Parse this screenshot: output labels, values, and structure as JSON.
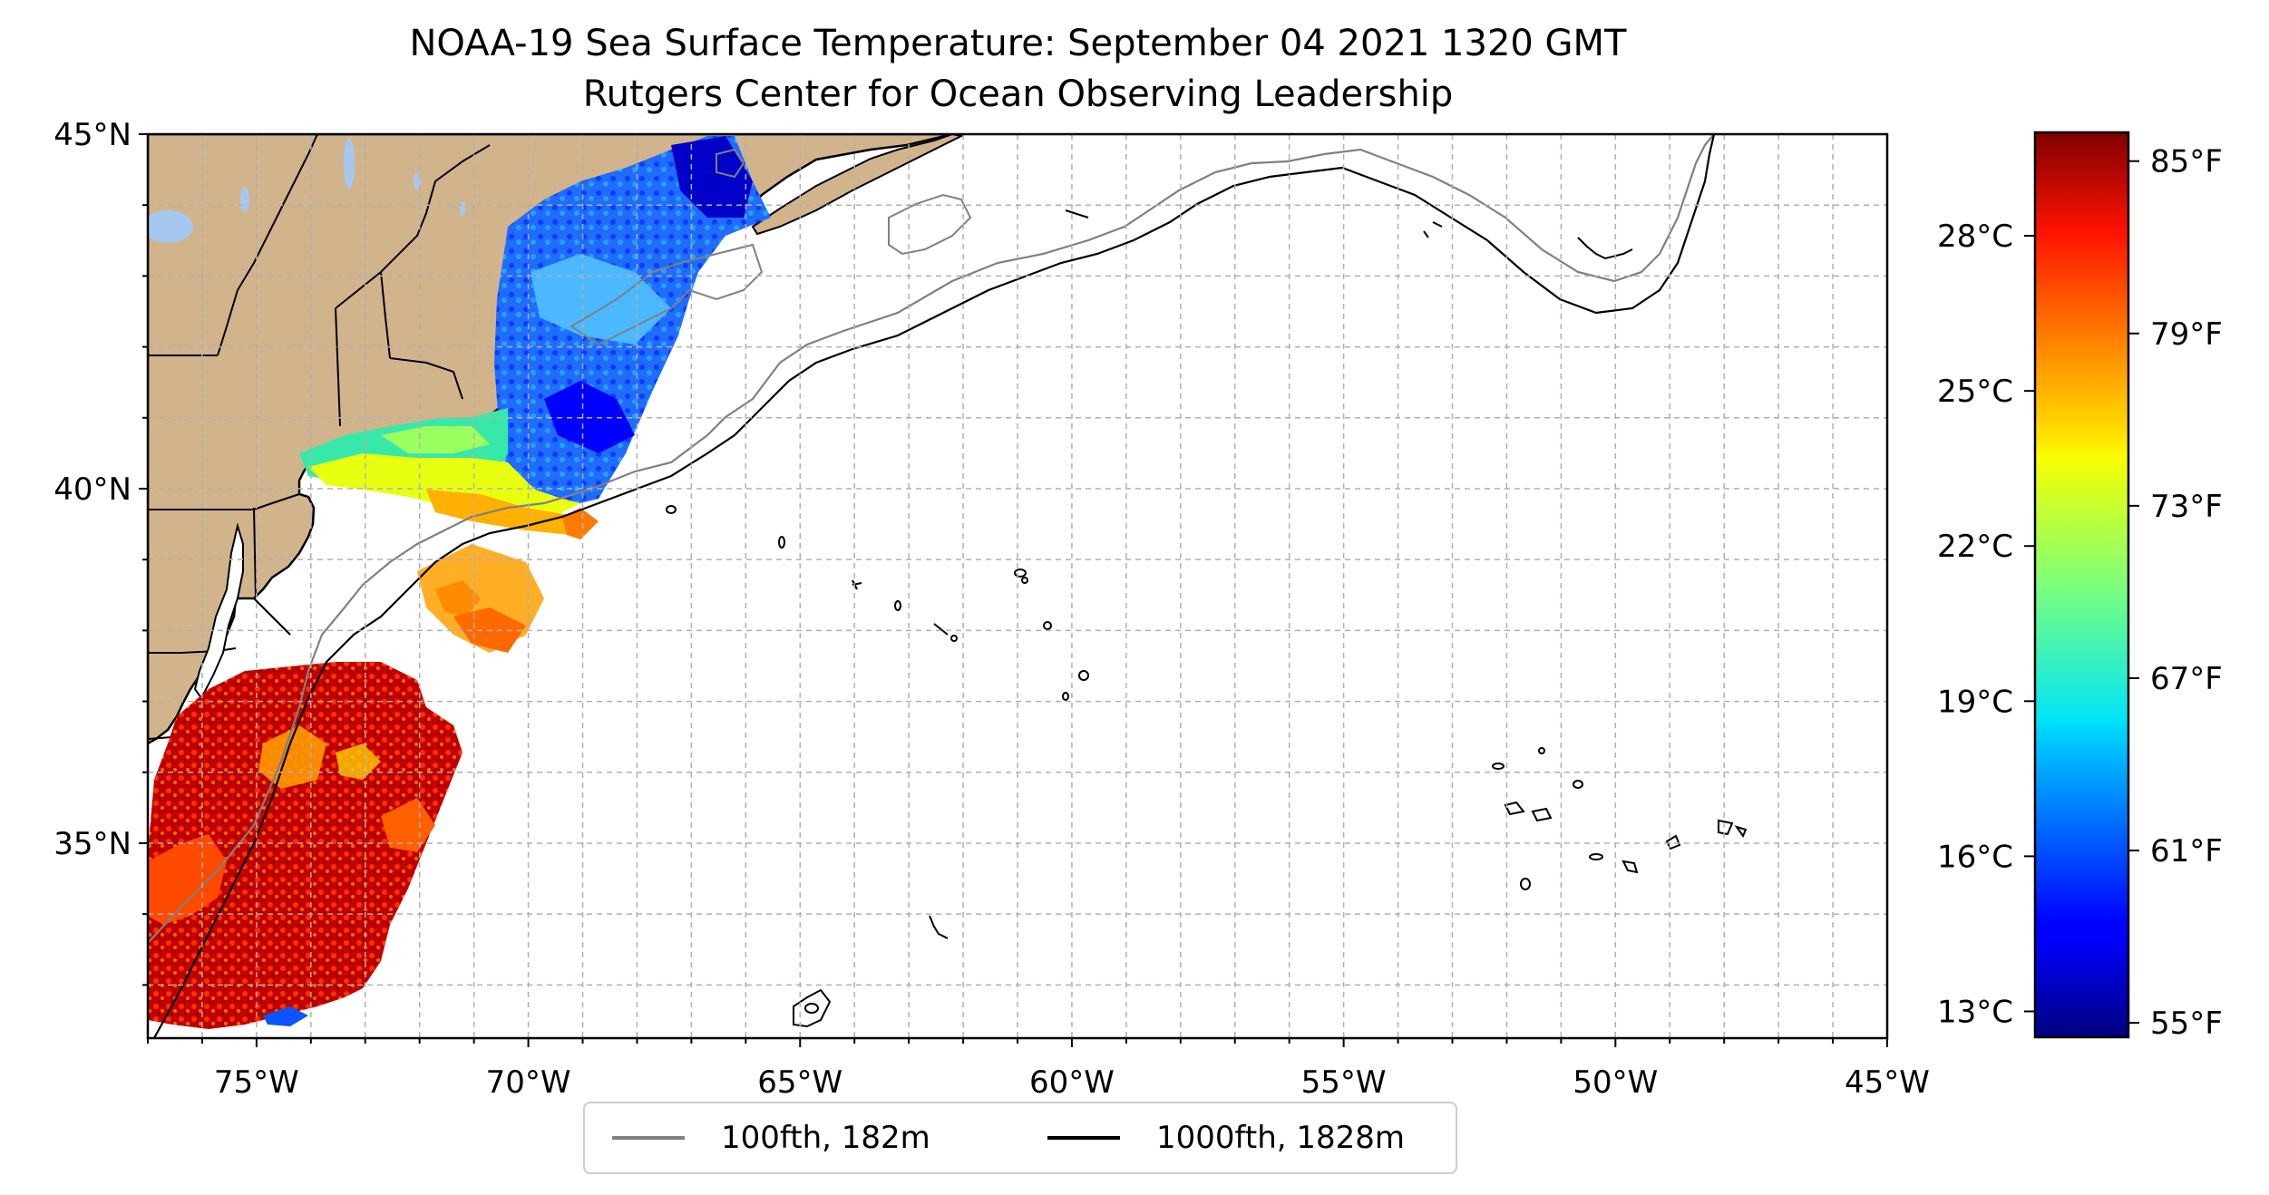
{
  "title": "NOAA-19 Sea Surface Temperature: September 04 2021 1320 GMT",
  "subtitle": "Rutgers Center for Ocean Observing Leadership",
  "map": {
    "lon_ticks": [
      {
        "label": "75°W",
        "lon": -75
      },
      {
        "label": "70°W",
        "lon": -70
      },
      {
        "label": "65°W",
        "lon": -65
      },
      {
        "label": "60°W",
        "lon": -60
      },
      {
        "label": "55°W",
        "lon": -55
      },
      {
        "label": "50°W",
        "lon": -50
      },
      {
        "label": "45°W",
        "lon": -45
      }
    ],
    "lat_ticks": [
      {
        "label": "45°N",
        "lat": 45
      },
      {
        "label": "40°N",
        "lat": 40
      },
      {
        "label": "35°N",
        "lat": 35
      }
    ],
    "extent": {
      "lon_min": -77,
      "lon_max": -45,
      "lat_min": 32.25,
      "lat_max": 45
    },
    "land_color": "#d2b48c",
    "water_color": "#ffffff",
    "grid": "dashed, every 1 degree"
  },
  "colorbar": {
    "colormap": "jet",
    "range_f": [
      54.5,
      86
    ],
    "celsius_ticks": [
      "28°C",
      "25°C",
      "22°C",
      "19°C",
      "16°C",
      "13°C"
    ],
    "fahrenheit_ticks": [
      "85°F",
      "79°F",
      "73°F",
      "67°F",
      "61°F",
      "55°F"
    ]
  },
  "legend": {
    "items": [
      {
        "label": "100fth, 182m",
        "color": "#808080"
      },
      {
        "label": "1000fth, 1828m",
        "color": "#000000"
      }
    ]
  }
}
